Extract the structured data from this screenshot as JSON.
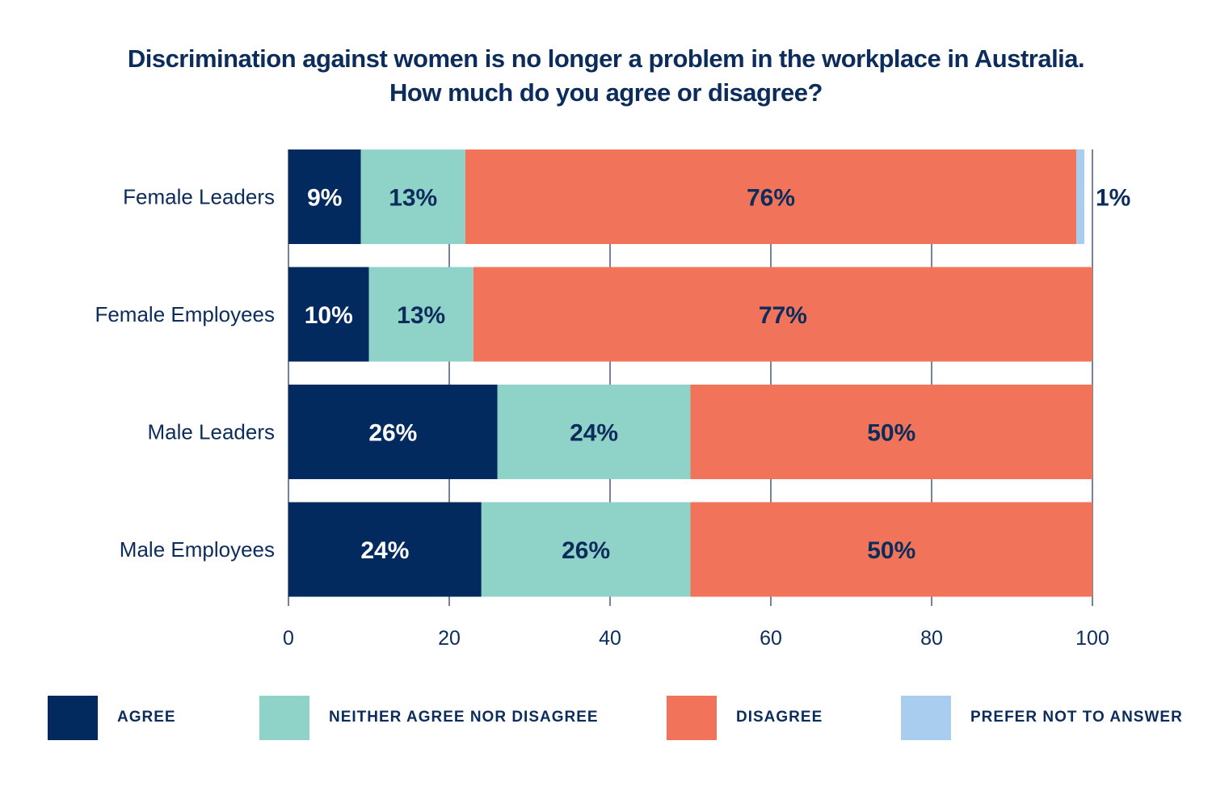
{
  "chart_data": {
    "type": "bar",
    "orientation": "horizontal",
    "stacked": true,
    "title": "Discrimination against women is no longer a problem in the workplace in Australia.",
    "subtitle": "How much do you agree or disagree?",
    "categories": [
      "Female Leaders",
      "Female Employees",
      "Male Leaders",
      "Male Employees"
    ],
    "series": [
      {
        "name": "AGREE",
        "color": "#022a5e",
        "label_color": "#ffffff",
        "values": [
          9,
          10,
          26,
          24
        ],
        "labels": [
          "9%",
          "10%",
          "26%",
          "24%"
        ]
      },
      {
        "name": "NEITHER AGREE NOR DISAGREE",
        "color": "#8fd3c8",
        "label_color": "#0c2c5c",
        "values": [
          13,
          13,
          24,
          26
        ],
        "labels": [
          "13%",
          "13%",
          "24%",
          "26%"
        ]
      },
      {
        "name": "DISAGREE",
        "color": "#f0735a",
        "label_color": "#0c2c5c",
        "values": [
          76,
          77,
          50,
          50
        ],
        "labels": [
          "76%",
          "77%",
          "50%",
          "50%"
        ]
      },
      {
        "name": "PREFER NOT TO ANSWER",
        "color": "#a9cdee",
        "label_color": "#0c2c5c",
        "values": [
          1,
          0,
          0,
          0
        ],
        "labels": [
          "1%",
          "",
          "",
          ""
        ]
      }
    ],
    "xlim": [
      0,
      100
    ],
    "xticks": [
      0,
      20,
      40,
      60,
      80,
      100
    ],
    "grid": true,
    "legend_position": "bottom",
    "xlabel": "",
    "ylabel": ""
  }
}
